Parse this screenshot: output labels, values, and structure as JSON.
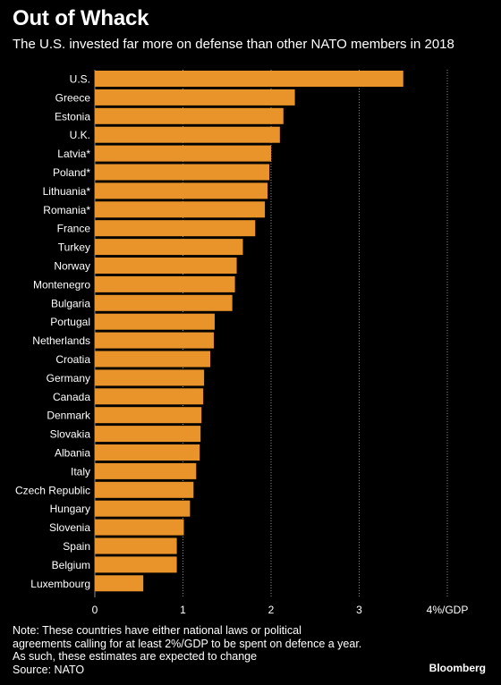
{
  "header": {
    "title": "Out of Whack",
    "subtitle": "The U.S. invested far more on defense than other NATO members in 2018"
  },
  "footer": {
    "note_lines": [
      "Note: These countries have either national laws or political",
      "agreements calling for at least 2%/GDP to be spent on defence a year.",
      "As such, these estimates are expected to change"
    ],
    "source": "Source: NATO",
    "brand": "Bloomberg"
  },
  "colors": {
    "background": "#000000",
    "bar": "#e8942a",
    "text": "#ffffff",
    "grid": "#8a8a8a"
  },
  "chart_data": {
    "type": "bar",
    "orientation": "horizontal",
    "title": "Out of Whack",
    "subtitle": "The U.S. invested far more on defense than other NATO members in 2018",
    "xlabel": "",
    "ylabel": "",
    "xlim": [
      0,
      4
    ],
    "x_ticks": [
      "0",
      "1",
      "2",
      "3",
      "4%/GDP"
    ],
    "grid": "vertical dotted",
    "categories": [
      "U.S.",
      "Greece",
      "Estonia",
      "U.K.",
      "Latvia*",
      "Poland*",
      "Lithuania*",
      "Romania*",
      "France",
      "Turkey",
      "Norway",
      "Montenegro",
      "Bulgaria",
      "Portugal",
      "Netherlands",
      "Croatia",
      "Germany",
      "Canada",
      "Denmark",
      "Slovakia",
      "Albania",
      "Italy",
      "Czech Republic",
      "Hungary",
      "Slovenia",
      "Spain",
      "Belgium",
      "Luxembourg"
    ],
    "values": [
      3.5,
      2.27,
      2.14,
      2.1,
      2.0,
      1.98,
      1.96,
      1.93,
      1.82,
      1.68,
      1.61,
      1.59,
      1.56,
      1.36,
      1.35,
      1.31,
      1.24,
      1.23,
      1.21,
      1.2,
      1.19,
      1.15,
      1.12,
      1.08,
      1.01,
      0.93,
      0.93,
      0.55
    ]
  }
}
